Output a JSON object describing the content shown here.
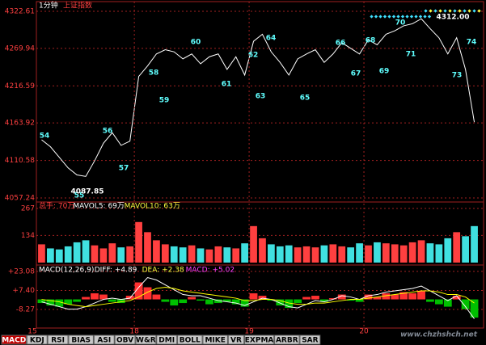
{
  "header": {
    "period": "1分钟",
    "name": "上证指数"
  },
  "tabs": [
    "MACD",
    "KDJ",
    "RSI",
    "BIAS",
    "ASI",
    "OBV",
    "W&R",
    "DMI",
    "BOLL",
    "MIKE",
    "VR",
    "EXPMA",
    "ARBR",
    "SAR"
  ],
  "watermark": "www.chzhshch.net",
  "chart_data": [
    {
      "type": "line",
      "color": "#ffffff",
      "categories": [
        "15",
        null,
        null,
        null,
        null,
        null,
        null,
        null,
        null,
        null,
        null,
        "18",
        null,
        null,
        null,
        null,
        null,
        null,
        null,
        null,
        null,
        null,
        null,
        null,
        "19",
        null,
        null,
        null,
        null,
        null,
        null,
        null,
        null,
        null,
        null,
        null,
        null,
        "20",
        null,
        null,
        null,
        null,
        null,
        null,
        null,
        null,
        null,
        null,
        null,
        null
      ],
      "values": [
        4140,
        4130,
        4115,
        4100,
        4090,
        4087.85,
        4110,
        4135,
        4150,
        4132,
        4138,
        4230,
        4245,
        4262,
        4268,
        4265,
        4255,
        4262,
        4248,
        4258,
        4262,
        4240,
        4258,
        4232,
        4280,
        4290,
        4265,
        4250,
        4232,
        4255,
        4262,
        4268,
        4250,
        4262,
        4278,
        4270,
        4262,
        4282,
        4275,
        4290,
        4295,
        4302,
        4305,
        4312,
        4298,
        4285,
        4262,
        4285,
        4240,
        4165
      ],
      "ylim": [
        4057.24,
        4322.61
      ],
      "yticks": [
        4057.24,
        4110.58,
        4163.92,
        4216.59,
        4269.94,
        4322.61
      ],
      "grid": true,
      "annotations": [
        "54",
        "55",
        "56",
        "57",
        "58",
        "59",
        "60",
        "61",
        "62",
        "63",
        "64",
        "65",
        "66",
        "67",
        "68",
        "69",
        "70",
        "71",
        "73",
        "74",
        "4087.85",
        "4312.00"
      ]
    },
    {
      "type": "bar",
      "legend": [
        "总手: 70万",
        "MAVOL5: 69万",
        "MAVOL10: 63万"
      ],
      "up_color": "#ff4040",
      "down_color": "#40e0e0",
      "values": [
        90,
        70,
        65,
        80,
        100,
        110,
        85,
        70,
        95,
        75,
        80,
        200,
        150,
        110,
        90,
        80,
        75,
        85,
        70,
        65,
        80,
        75,
        70,
        95,
        180,
        120,
        90,
        80,
        85,
        75,
        80,
        75,
        85,
        90,
        80,
        75,
        95,
        85,
        100,
        95,
        90,
        85,
        100,
        110,
        95,
        90,
        120,
        150,
        130,
        180
      ],
      "ylim": [
        0,
        267
      ],
      "yticks": [
        134,
        267
      ],
      "grid": true
    },
    {
      "type": "macd",
      "legend": [
        "MACD(12,26,9)",
        "DIFF: +4.89",
        "DEA: +2.38",
        "MACD: +5.02"
      ],
      "series": [
        {
          "name": "DIFF",
          "color": "#ffffff",
          "values": [
            -2,
            -4,
            -6,
            -8,
            -8,
            -6,
            -3,
            0,
            1,
            0,
            1,
            10,
            18,
            16,
            12,
            8,
            4,
            3,
            3,
            1,
            -1,
            -2,
            -3,
            -5,
            -2,
            1,
            0,
            -3,
            -6,
            -7,
            -4,
            -1,
            -2,
            0,
            3,
            2,
            0,
            3,
            4,
            6,
            7,
            8,
            9,
            11,
            7,
            3,
            -1,
            3,
            -6,
            -16
          ]
        },
        {
          "name": "DEA",
          "color": "#ffff00",
          "values": [
            0,
            -1,
            -2,
            -4,
            -5,
            -6,
            -5,
            -4,
            -3,
            -2,
            -1,
            2,
            6,
            9,
            10,
            9,
            7,
            6,
            5,
            4,
            3,
            2,
            1,
            -1,
            -1,
            0,
            0,
            -1,
            -3,
            -4,
            -4,
            -3,
            -3,
            -2,
            -1,
            0,
            0,
            1,
            2,
            3,
            4,
            5,
            6,
            7,
            7,
            6,
            4,
            4,
            2,
            -3
          ]
        },
        {
          "name": "MACD",
          "pos_color": "#ff3030",
          "neg_color": "#00c000",
          "values": [
            -3,
            -5,
            -6,
            -4,
            -2,
            2,
            5,
            4,
            -2,
            -3,
            3,
            14,
            10,
            4,
            -2,
            -5,
            -3,
            2,
            -1,
            -4,
            -3,
            -2,
            -4,
            -6,
            5,
            3,
            -1,
            -5,
            -7,
            -3,
            2,
            3,
            -2,
            1,
            4,
            -1,
            -2,
            4,
            2,
            5,
            4,
            6,
            5,
            7,
            -2,
            -4,
            -6,
            3,
            -8,
            -15
          ]
        }
      ],
      "ylim": [
        -19.6,
        27
      ],
      "yticks": [
        {
          "value": -8.27,
          "label": "-8.27"
        },
        {
          "value": 7.4,
          "label": "+7.40"
        },
        {
          "value": 23.08,
          "label": "+23.08"
        }
      ],
      "grid": true
    }
  ]
}
